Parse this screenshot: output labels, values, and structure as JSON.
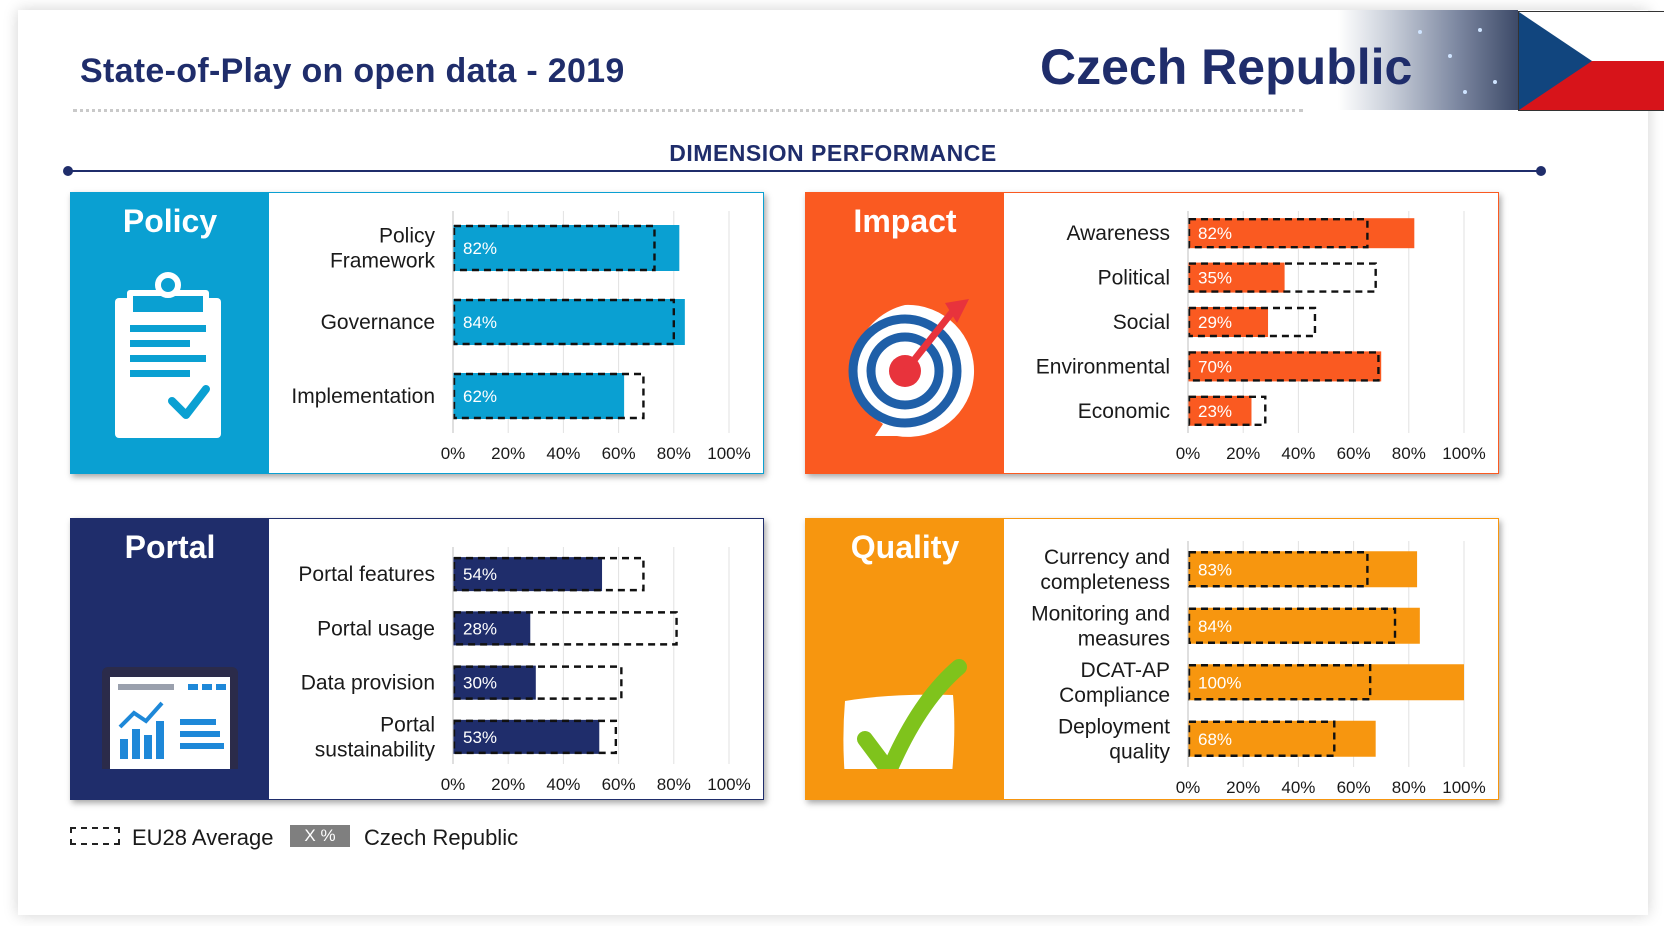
{
  "header": {
    "title": "State-of-Play on open data - 2019",
    "country": "Czech Republic"
  },
  "section_title": "DIMENSION PERFORMANCE",
  "legend": {
    "eu_label": "EU28 Average",
    "country_box": "X %",
    "country_label": "Czech Republic"
  },
  "colors": {
    "policy": "#0aa0d2",
    "impact": "#fa5a21",
    "portal": "#1f2d6b",
    "quality": "#f7960f"
  },
  "chart_data": [
    {
      "type": "bar",
      "title": "Policy",
      "orientation": "horizontal",
      "icon": "clipboard-check-icon",
      "categories": [
        "Policy\nFramework",
        "Governance",
        "Implementation"
      ],
      "series": [
        {
          "name": "Czech Republic",
          "values": [
            82,
            84,
            62
          ],
          "labels": [
            "82%",
            "84%",
            "62%"
          ]
        },
        {
          "name": "EU28 Average",
          "values": [
            73,
            80,
            69
          ]
        }
      ],
      "xlim": [
        0,
        100
      ],
      "xticks": [
        "0%",
        "20%",
        "40%",
        "60%",
        "80%",
        "100%"
      ],
      "grid": true
    },
    {
      "type": "bar",
      "title": "Impact",
      "orientation": "horizontal",
      "icon": "target-dart-icon",
      "categories": [
        "Awareness",
        "Political",
        "Social",
        "Environmental",
        "Economic"
      ],
      "series": [
        {
          "name": "Czech Republic",
          "values": [
            82,
            35,
            29,
            70,
            23
          ],
          "labels": [
            "82%",
            "35%",
            "29%",
            "70%",
            "23%"
          ]
        },
        {
          "name": "EU28 Average",
          "values": [
            65,
            68,
            46,
            69,
            28
          ]
        }
      ],
      "xlim": [
        0,
        100
      ],
      "xticks": [
        "0%",
        "20%",
        "40%",
        "60%",
        "80%",
        "100%"
      ],
      "grid": true
    },
    {
      "type": "bar",
      "title": "Portal",
      "orientation": "horizontal",
      "icon": "monitor-chart-icon",
      "categories": [
        "Portal features",
        "Portal usage",
        "Data provision",
        "Portal\nsustainability"
      ],
      "series": [
        {
          "name": "Czech Republic",
          "values": [
            54,
            28,
            30,
            53
          ],
          "labels": [
            "54%",
            "28%",
            "30%",
            "53%"
          ]
        },
        {
          "name": "EU28 Average",
          "values": [
            69,
            81,
            61,
            59
          ]
        }
      ],
      "xlim": [
        0,
        100
      ],
      "xticks": [
        "0%",
        "20%",
        "40%",
        "60%",
        "80%",
        "100%"
      ],
      "grid": true
    },
    {
      "type": "bar",
      "title": "Quality",
      "orientation": "horizontal",
      "icon": "checkmark-icon",
      "categories": [
        "Currency and\ncompleteness",
        "Monitoring and\nmeasures",
        "DCAT-AP\nCompliance",
        "Deployment\nquality"
      ],
      "series": [
        {
          "name": "Czech Republic",
          "values": [
            83,
            84,
            100,
            68
          ],
          "labels": [
            "83%",
            "84%",
            "100%",
            "68%"
          ]
        },
        {
          "name": "EU28 Average",
          "values": [
            65,
            75,
            66,
            53
          ]
        }
      ],
      "xlim": [
        0,
        100
      ],
      "xticks": [
        "0%",
        "20%",
        "40%",
        "60%",
        "80%",
        "100%"
      ],
      "grid": true
    }
  ]
}
